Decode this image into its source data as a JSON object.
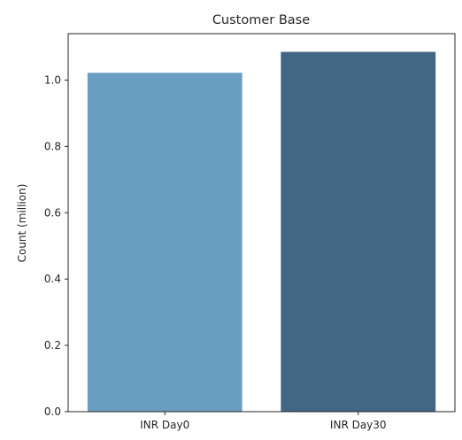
{
  "chart_data": {
    "type": "bar",
    "title": "Customer Base",
    "xlabel": "",
    "ylabel": "Count (million)",
    "categories": [
      "INR Day0",
      "INR Day30"
    ],
    "values": [
      1.022,
      1.085
    ],
    "colors": [
      "#6a9ec0",
      "#416784"
    ],
    "ylim": [
      0,
      1.14
    ],
    "yticks": [
      0.0,
      0.2,
      0.4,
      0.6,
      0.8,
      1.0
    ],
    "ytick_labels": [
      "0.0",
      "0.2",
      "0.4",
      "0.6",
      "0.8",
      "1.0"
    ],
    "grid": false
  }
}
